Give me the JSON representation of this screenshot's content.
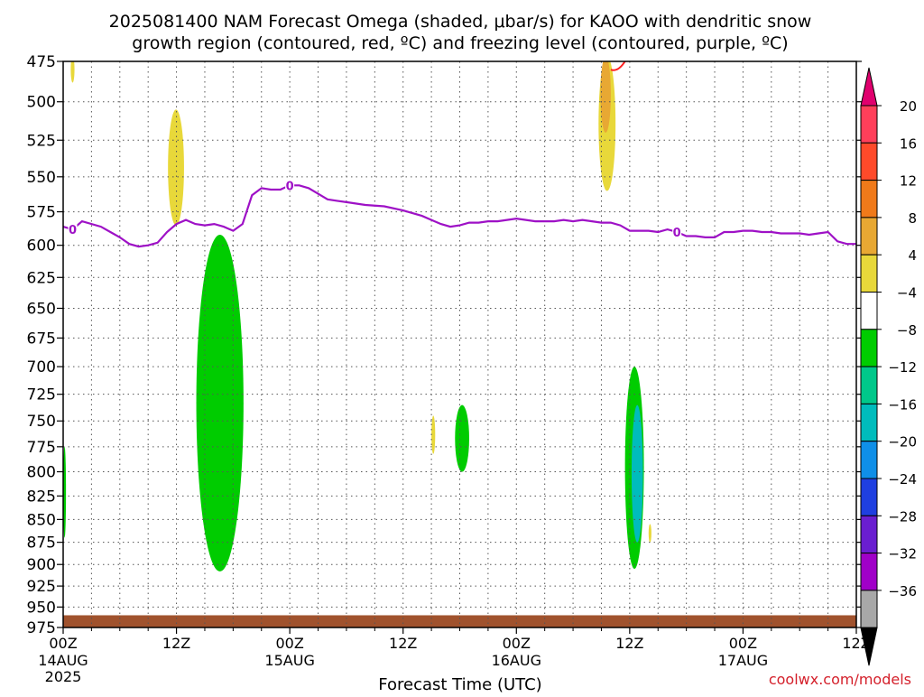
{
  "title_line1": "2025081400 NAM Forecast Omega (shaded, μbar/s) for KAOO with dendritic snow",
  "title_line2": "growth region (contoured, red, ºC) and freezing level (contoured, purple, ºC)",
  "watermark": "coolwx.com/models",
  "chart_data": {
    "type": "heatmap",
    "xlabel": "Forecast Time (UTC)",
    "ylabel": "",
    "y_scale": "log-pressure",
    "ylim": [
      475,
      975
    ],
    "xlim_hours": [
      0,
      84
    ],
    "grid": true,
    "y_ticks": [
      475,
      500,
      525,
      550,
      575,
      600,
      625,
      650,
      675,
      700,
      725,
      750,
      775,
      800,
      825,
      850,
      875,
      900,
      925,
      950,
      975
    ],
    "x_ticks": [
      {
        "hour": 0,
        "label": "00Z",
        "sub": "14AUG",
        "sub2": "2025"
      },
      {
        "hour": 12,
        "label": "12Z",
        "sub": "",
        "sub2": ""
      },
      {
        "hour": 24,
        "label": "00Z",
        "sub": "15AUG",
        "sub2": ""
      },
      {
        "hour": 36,
        "label": "12Z",
        "sub": "",
        "sub2": ""
      },
      {
        "hour": 48,
        "label": "00Z",
        "sub": "16AUG",
        "sub2": ""
      },
      {
        "hour": 60,
        "label": "12Z",
        "sub": "",
        "sub2": ""
      },
      {
        "hour": 72,
        "label": "00Z",
        "sub": "17AUG",
        "sub2": ""
      },
      {
        "hour": 84,
        "label": "12Z",
        "sub": "",
        "sub2": ""
      }
    ],
    "colorbar": {
      "labels": [
        "20",
        "16",
        "12",
        "8",
        "4",
        "−4",
        "−8",
        "−12",
        "−16",
        "−20",
        "−24",
        "−28",
        "−32",
        "−36"
      ],
      "colors": [
        "#ff3f5a",
        "#ff4a2a",
        "#f07a1a",
        "#e8a833",
        "#e8d83a",
        "#ffffff",
        "#00cc00",
        "#00c88a",
        "#00bcbc",
        "#0f8fe8",
        "#1f3fe0",
        "#6a1ed0",
        "#a000c8",
        "#a8a8a8"
      ],
      "top_arrow_color": "#e0006e",
      "bottom_arrow_color": "#000000"
    },
    "freezing_level": {
      "label": "0",
      "color": "#9e11c6",
      "hours": [
        0,
        1,
        2,
        4,
        6,
        7,
        8,
        9,
        10,
        11,
        12,
        13,
        14,
        15,
        16,
        17,
        18,
        19,
        20,
        21,
        22,
        23,
        24,
        25,
        26,
        27,
        28,
        29,
        30,
        32,
        34,
        36,
        38,
        39,
        40,
        41,
        42,
        43,
        44,
        45,
        46,
        47,
        48,
        49,
        50,
        51,
        52,
        53,
        54,
        55,
        56,
        57,
        58,
        59,
        60,
        61,
        62,
        63,
        64,
        65,
        66,
        67,
        68,
        69,
        70,
        71,
        72,
        73,
        74,
        75,
        76,
        77,
        78,
        79,
        80,
        81,
        82,
        83,
        84
      ],
      "pressure": [
        586,
        588,
        582,
        586,
        594,
        599,
        601,
        600,
        598,
        590,
        584,
        581,
        584,
        585,
        584,
        586,
        589,
        584,
        563,
        558,
        559,
        559,
        556,
        556,
        558,
        562,
        566,
        567,
        568,
        570,
        571,
        574,
        578,
        581,
        584,
        586,
        585,
        583,
        583,
        582,
        582,
        581,
        580,
        581,
        582,
        582,
        582,
        581,
        582,
        581,
        582,
        583,
        583,
        585,
        589,
        589,
        589,
        590,
        588,
        590,
        593,
        593,
        594,
        594,
        590,
        590,
        589,
        589,
        590,
        590,
        591,
        591,
        591,
        592,
        591,
        590,
        597,
        599,
        599
      ]
    },
    "omega_regions": [
      {
        "band": "4 to 8",
        "hours": [
          0.8,
          1.2
        ],
        "pressure": [
          472,
          488
        ]
      },
      {
        "band": "4 to 8",
        "hours": [
          11.1,
          12.8
        ],
        "pressure": [
          505,
          585
        ]
      },
      {
        "band": "-4 to -8",
        "hours": [
          14.1,
          19.1
        ],
        "pressure": [
          592,
          908
        ]
      },
      {
        "band": "4 to 8",
        "hours": [
          39.0,
          39.4
        ],
        "pressure": [
          745,
          782
        ]
      },
      {
        "band": "-4 to -8",
        "hours": [
          41.5,
          43.0
        ],
        "pressure": [
          735,
          800
        ]
      },
      {
        "band": "4 to 8",
        "hours": [
          56.7,
          58.5
        ],
        "pressure": [
          472,
          560
        ]
      },
      {
        "band": "8 to 12",
        "hours": [
          56.9,
          58.0
        ],
        "pressure": [
          472,
          520
        ]
      },
      {
        "band": "-4 to -8",
        "hours": [
          59.5,
          61.5
        ],
        "pressure": [
          700,
          905
        ]
      },
      {
        "band": "-8 to -16",
        "hours": [
          60.2,
          61.4
        ],
        "pressure": [
          735,
          875
        ]
      },
      {
        "band": "4 to 8",
        "hours": [
          62.0,
          62.3
        ],
        "pressure": [
          855,
          875
        ]
      },
      {
        "band": "-4 to -8",
        "hours": [
          0.0,
          0.3
        ],
        "pressure": [
          775,
          870
        ]
      }
    ],
    "dendritic_growth_contour": {
      "color": "#ff2020",
      "hours": [
        58.0,
        59.5
      ],
      "pressure": [
        472,
        480
      ]
    },
    "terrain": {
      "color": "#a0522d",
      "top_pressure": 960
    }
  }
}
